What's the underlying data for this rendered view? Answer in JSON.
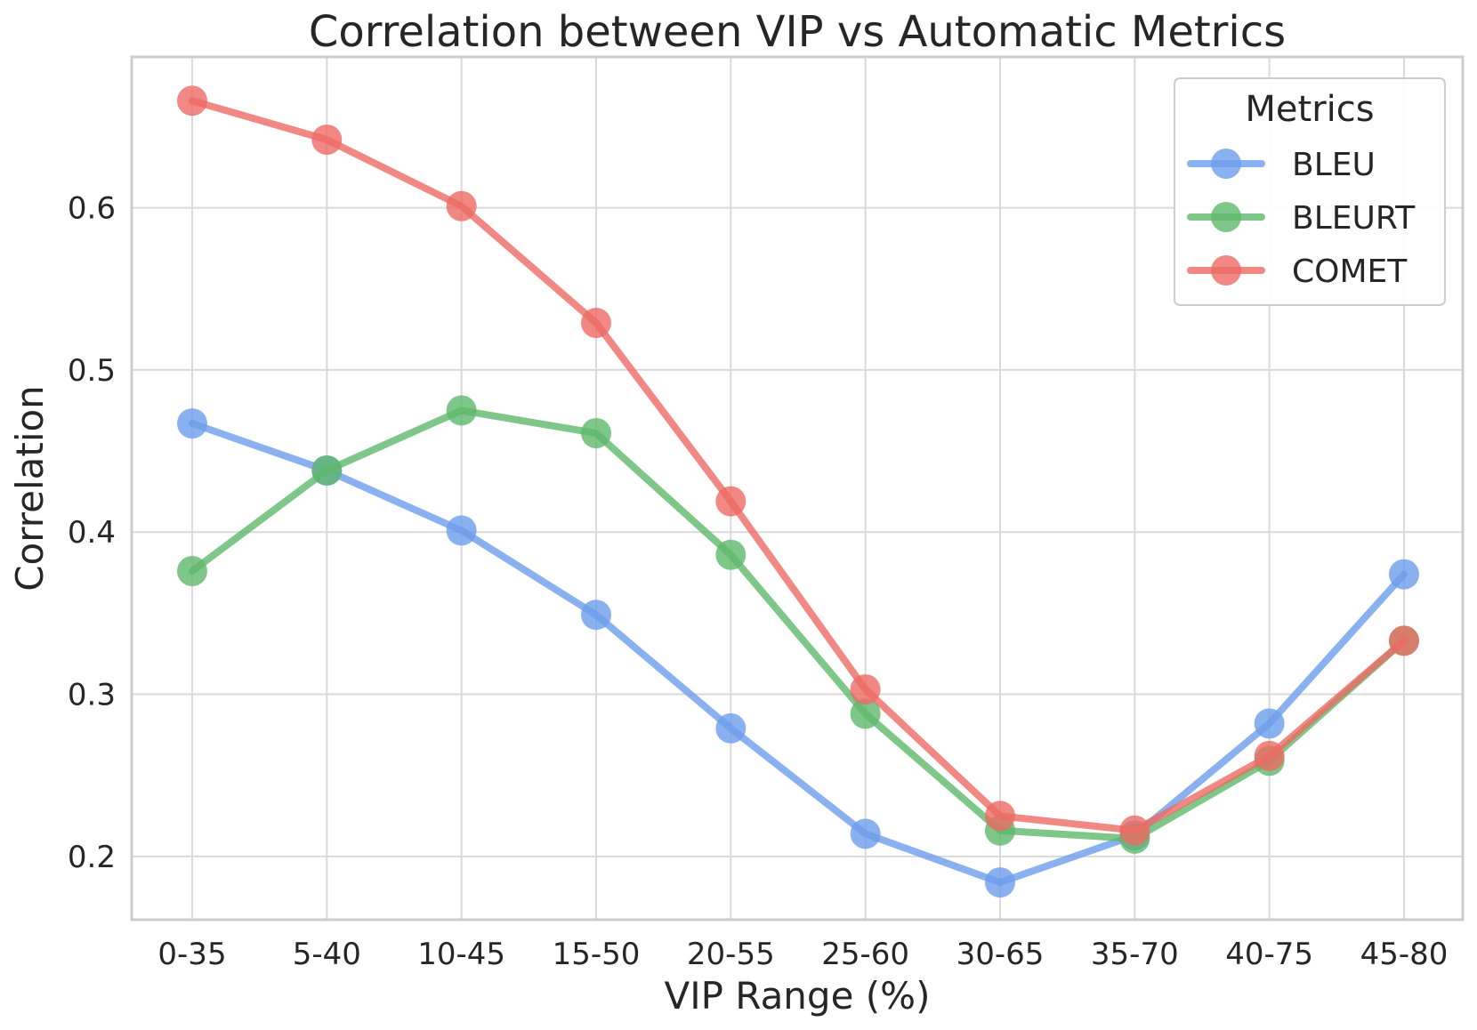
{
  "chart_data": {
    "type": "line",
    "title": "Correlation between VIP vs Automatic Metrics",
    "xlabel": "VIP Range (%)",
    "ylabel": "Correlation",
    "categories": [
      "0-35",
      "5-40",
      "10-45",
      "15-50",
      "20-55",
      "25-60",
      "30-65",
      "35-70",
      "40-75",
      "45-80"
    ],
    "yticks": [
      "0.2",
      "0.3",
      "0.4",
      "0.5",
      "0.6"
    ],
    "ylim": [
      0.161,
      0.693
    ],
    "grid": true,
    "legend_position": "top-right",
    "legend_title": "Metrics",
    "series": [
      {
        "name": "BLEU",
        "color": "#6d9eeb",
        "values": [
          0.467,
          0.438,
          0.401,
          0.349,
          0.279,
          0.214,
          0.184,
          0.213,
          0.282,
          0.374
        ]
      },
      {
        "name": "BLEURT",
        "color": "#5fb86c",
        "values": [
          0.376,
          0.438,
          0.475,
          0.461,
          0.386,
          0.288,
          0.216,
          0.211,
          0.259,
          0.333
        ]
      },
      {
        "name": "COMET",
        "color": "#ed6a64",
        "values": [
          0.666,
          0.642,
          0.601,
          0.529,
          0.419,
          0.303,
          0.225,
          0.216,
          0.262,
          0.333
        ]
      }
    ]
  }
}
